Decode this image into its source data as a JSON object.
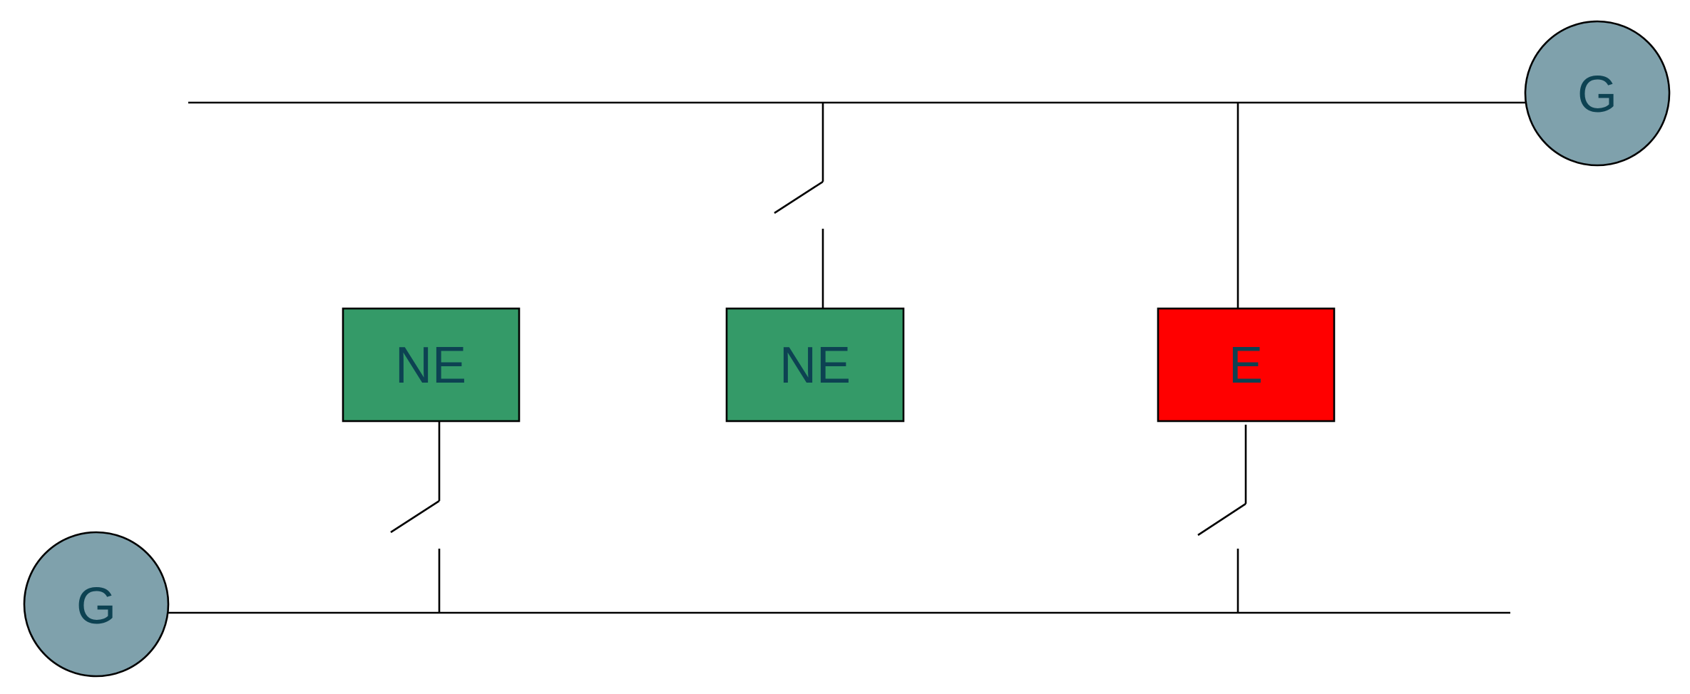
{
  "colors": {
    "wire": "#000000",
    "node_ne_fill": "#349a68",
    "node_e_fill": "#ff0000",
    "generator_fill": "#7fa1ac",
    "label_text": "#0d4252"
  },
  "generators": [
    {
      "id": "gen-top-right",
      "label": "G"
    },
    {
      "id": "gen-bottom-left",
      "label": "G"
    }
  ],
  "nodes": [
    {
      "id": "node-left",
      "label": "NE",
      "status": "NE"
    },
    {
      "id": "node-middle",
      "label": "NE",
      "status": "NE"
    },
    {
      "id": "node-right",
      "label": "E",
      "status": "E"
    }
  ]
}
